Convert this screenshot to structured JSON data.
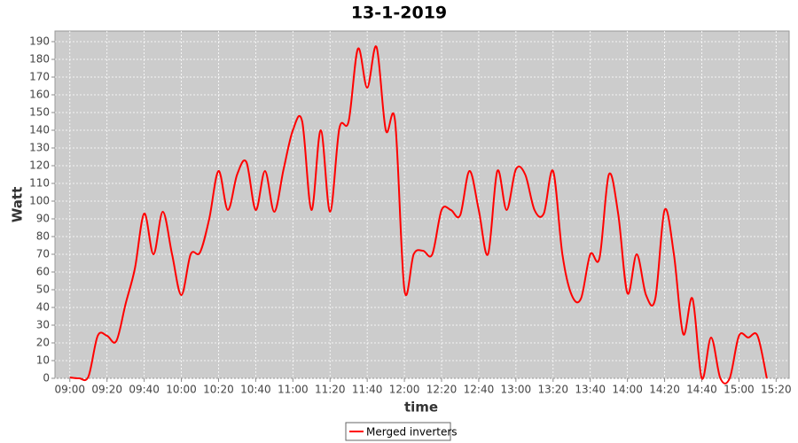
{
  "chart_data": {
    "type": "line",
    "title": "13-1-2019",
    "x_label": "time",
    "y_label": "Watt",
    "x": [
      "09:00",
      "09:05",
      "09:10",
      "09:15",
      "09:20",
      "09:25",
      "09:30",
      "09:35",
      "09:40",
      "09:45",
      "09:50",
      "09:55",
      "10:00",
      "10:05",
      "10:10",
      "10:15",
      "10:20",
      "10:25",
      "10:30",
      "10:35",
      "10:40",
      "10:45",
      "10:50",
      "10:55",
      "11:00",
      "11:05",
      "11:10",
      "11:15",
      "11:20",
      "11:25",
      "11:30",
      "11:35",
      "11:40",
      "11:45",
      "11:50",
      "11:55",
      "12:00",
      "12:05",
      "12:10",
      "12:15",
      "12:20",
      "12:25",
      "12:30",
      "12:35",
      "12:40",
      "12:45",
      "12:50",
      "12:55",
      "13:00",
      "13:05",
      "13:10",
      "13:15",
      "13:20",
      "13:25",
      "13:30",
      "13:35",
      "13:40",
      "13:45",
      "13:50",
      "13:55",
      "14:00",
      "14:05",
      "14:10",
      "14:15",
      "14:20",
      "14:25",
      "14:30",
      "14:35",
      "14:40",
      "14:45",
      "14:50",
      "14:55",
      "15:00",
      "15:05",
      "15:10",
      "15:15"
    ],
    "series": [
      {
        "name": "Merged inverters",
        "color": "#ff0000",
        "values": [
          0.5,
          0,
          1,
          24,
          24,
          21,
          42,
          62,
          93,
          70,
          94,
          70,
          47,
          70,
          71,
          90,
          117,
          95,
          115,
          122,
          95,
          117,
          94,
          118,
          140,
          145,
          95,
          140,
          94,
          141,
          145,
          186,
          164,
          187,
          140,
          145,
          50,
          70,
          72,
          70,
          95,
          95,
          92,
          117,
          95,
          70,
          117,
          95,
          118,
          115,
          95,
          93,
          117,
          70,
          47,
          45,
          70,
          68,
          115,
          93,
          48,
          70,
          47,
          45,
          95,
          70,
          25,
          45,
          0,
          23,
          0,
          0,
          24,
          23,
          24,
          0
        ]
      }
    ],
    "xlim": [
      "08:52",
      "15:27"
    ],
    "xticks": [
      "09:00",
      "09:20",
      "09:40",
      "10:00",
      "10:20",
      "10:40",
      "11:00",
      "11:20",
      "11:40",
      "12:00",
      "12:20",
      "12:40",
      "13:00",
      "13:20",
      "13:40",
      "14:00",
      "14:20",
      "14:40",
      "15:00",
      "15:20"
    ],
    "ylim": [
      0,
      196
    ],
    "yticks": [
      0,
      10,
      20,
      30,
      40,
      50,
      60,
      70,
      80,
      90,
      100,
      110,
      120,
      130,
      140,
      150,
      160,
      170,
      180,
      190
    ],
    "grid": true,
    "legend": "bottom"
  }
}
